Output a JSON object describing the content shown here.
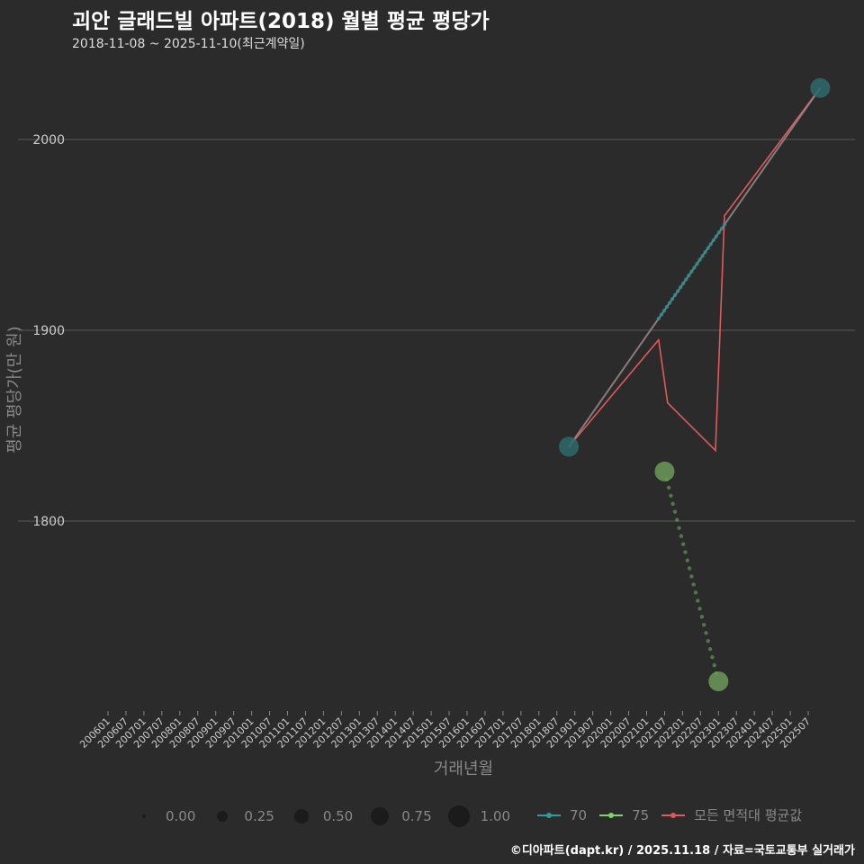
{
  "chart_data": {
    "type": "line",
    "title": "괴안 글래드빌 아파트(2018) 월별 평균 평당가",
    "subtitle": "2018-11-08 ~ 2025-11-10(최근계약일)",
    "xlabel": "거래년월",
    "ylabel": "평균 평당가(만 원)",
    "y_ticks": [
      1800,
      1900,
      2000
    ],
    "ylim": [
      1700,
      2040
    ],
    "x_ticks": [
      "200601",
      "200607",
      "200701",
      "200707",
      "200801",
      "200807",
      "200901",
      "200907",
      "201001",
      "201007",
      "201101",
      "201107",
      "201201",
      "201207",
      "201301",
      "201307",
      "201401",
      "201407",
      "201501",
      "201507",
      "201601",
      "201607",
      "201701",
      "201707",
      "201801",
      "201807",
      "201901",
      "201907",
      "202001",
      "202007",
      "202101",
      "202107",
      "202201",
      "202207",
      "202301",
      "202307",
      "202401",
      "202407",
      "202501",
      "202507"
    ],
    "grid": true,
    "series": [
      {
        "name": "70",
        "color": "#2a9d9f",
        "points": [
          {
            "date": "2018-11",
            "value": 1839,
            "size": 1.0
          },
          {
            "date": "2025-11",
            "value": 2027,
            "size": 1.0
          }
        ]
      },
      {
        "name": "75",
        "color": "#7fd36a",
        "points": [
          {
            "date": "2021-07",
            "value": 1826,
            "size": 1.0
          },
          {
            "date": "2023-01",
            "value": 1716,
            "size": 1.0
          }
        ]
      },
      {
        "name": "모든 면적대 평균값",
        "color": "#e05a5a",
        "points": [
          {
            "date": "2018-11",
            "value": 1839
          },
          {
            "date": "2021-05",
            "value": 1895
          },
          {
            "date": "2021-08",
            "value": 1862
          },
          {
            "date": "2022-12",
            "value": 1837
          },
          {
            "date": "2023-03",
            "value": 1960
          },
          {
            "date": "2025-11",
            "value": 2027
          }
        ]
      }
    ],
    "size_legend": [
      "0.00",
      "0.25",
      "0.50",
      "0.75",
      "1.00"
    ],
    "legend_position": "bottom"
  },
  "footer": "©디아파트(dapt.kr) / 2025.11.18 / 자료=국토교통부 실거래가"
}
